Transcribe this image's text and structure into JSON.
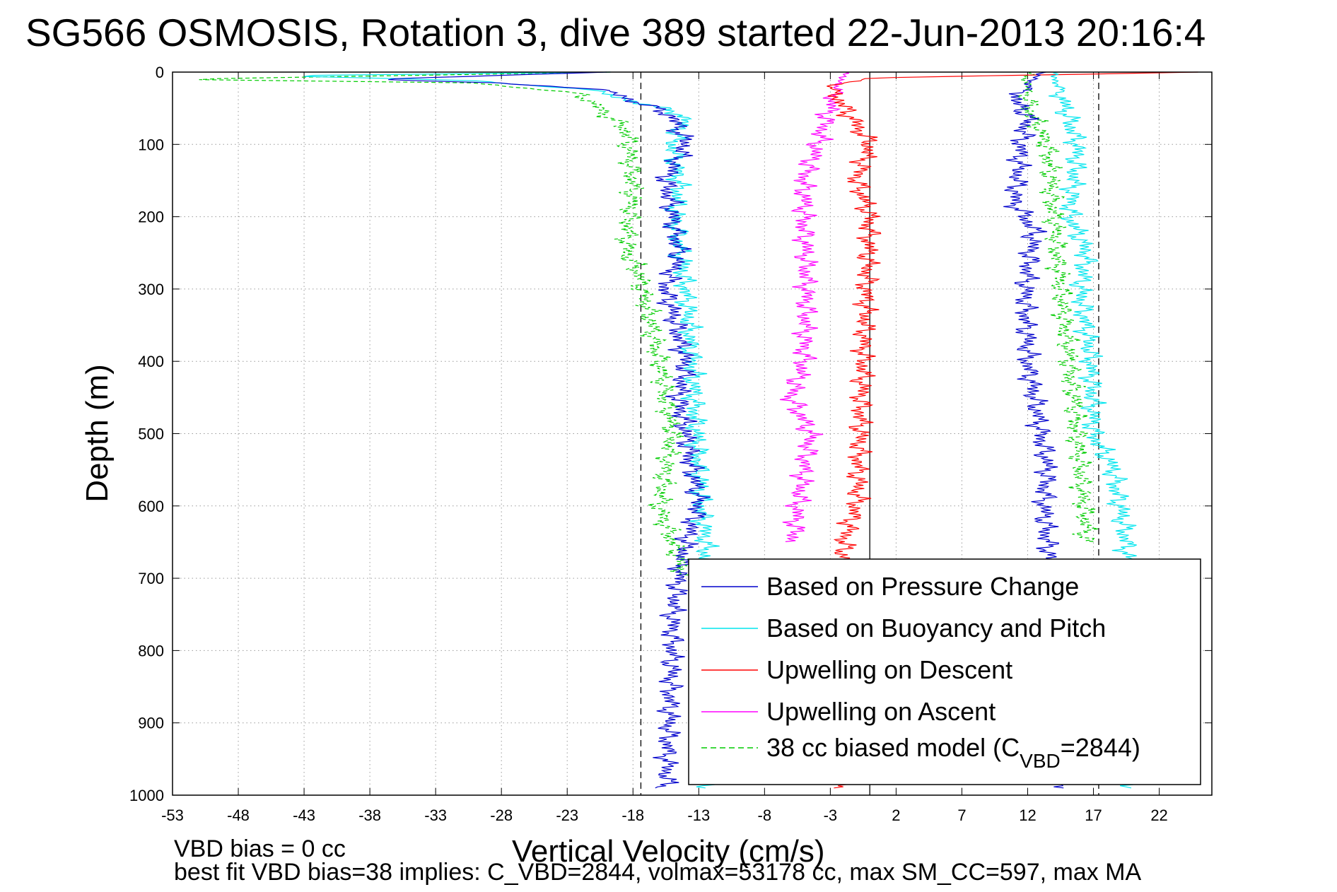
{
  "figure": {
    "title": "SG566 OSMOSIS, Rotation 3, dive 389 started 22-Jun-2013 20:16:4",
    "note_line1": "VBD bias = 0 cc",
    "note_line2": "best fit VBD bias=38 implies: C_VBD=2844, volmax=53178 cc, max SM_CC=597, max MA"
  },
  "chart_data": {
    "type": "line",
    "title": "SG566 OSMOSIS, Rotation 3, dive 389 started 22-Jun-2013 20:16:4",
    "xlabel": "Vertical Velocity (cm/s)",
    "ylabel": "Depth (m)",
    "xlim": [
      -53,
      26
    ],
    "ylim": [
      1000,
      0
    ],
    "y_reversed": true,
    "xticks": [
      -53,
      -48,
      -43,
      -38,
      -33,
      -28,
      -23,
      -18,
      -13,
      -8,
      -3,
      2,
      7,
      12,
      17,
      22
    ],
    "yticks": [
      0,
      100,
      200,
      300,
      400,
      500,
      600,
      700,
      800,
      900,
      1000
    ],
    "grid": true,
    "legend_position": "bottom-right",
    "reference_lines": [
      {
        "x": -17.4,
        "style": "dashed",
        "color": "#000000"
      },
      {
        "x": 0,
        "style": "solid",
        "color": "#000000"
      },
      {
        "x": 17.4,
        "style": "dashed",
        "color": "#000000"
      }
    ],
    "series": [
      {
        "name": "Based on Pressure Change",
        "color": "#0000cc",
        "style": "solid",
        "branches": [
          {
            "x": [
              -20,
              -38,
              -28,
              -20,
              -15,
              -14,
              -15.5,
              -15,
              -14.5,
              -15.5,
              -14,
              -14.5,
              -13.5,
              -13,
              -14,
              -14.5,
              -15,
              -15,
              -15.5
            ],
            "y": [
              0,
              10,
              15,
              25,
              60,
              100,
              150,
              200,
              250,
              300,
              400,
              450,
              550,
              600,
              650,
              700,
              750,
              800,
              990
            ]
          },
          {
            "x": [
              13,
              11,
              12,
              11.5,
              11,
              12.5,
              11.8,
              12,
              13,
              13.5,
              13.2,
              13.5,
              14,
              15
            ],
            "y": [
              0,
              40,
              60,
              100,
              180,
              220,
              300,
              400,
              500,
              550,
              600,
              650,
              700,
              990
            ]
          }
        ]
      },
      {
        "name": "Based on Buoyancy and Pitch",
        "color": "#00e5ee",
        "style": "solid",
        "branches": [
          {
            "x": [
              -20,
              -45,
              -30,
              -21,
              -14,
              -15,
              -14.5,
              -14.8,
              -14,
              -13.5,
              -13.2,
              -13,
              -12.8,
              -12.5,
              -12.5,
              -12.3
            ],
            "y": [
              0,
              5,
              12,
              25,
              60,
              100,
              150,
              200,
              300,
              400,
              500,
              550,
              600,
              650,
              700,
              990
            ]
          },
          {
            "x": [
              14,
              14.5,
              15,
              15.8,
              15.5,
              15.2,
              16.5,
              16,
              16.8,
              17,
              18.5,
              19,
              19.5,
              20
            ],
            "y": [
              0,
              30,
              60,
              100,
              150,
              200,
              250,
              300,
              400,
              500,
              550,
              600,
              650,
              990
            ]
          }
        ]
      },
      {
        "name": "Upwelling on Descent",
        "color": "#ff0000",
        "style": "solid",
        "branches": [
          {
            "x": [
              25,
              0,
              -3,
              0,
              -1,
              0,
              -0.5,
              -1,
              -2,
              -2
            ],
            "y": [
              0,
              8,
              20,
              100,
              150,
              200,
              400,
              600,
              650,
              990
            ]
          }
        ]
      },
      {
        "name": "Upwelling on Ascent",
        "color": "#ff00ff",
        "style": "solid",
        "branches": [
          {
            "x": [
              -2,
              -3,
              -4,
              -5,
              -5,
              -4.8,
              -5,
              -6,
              -4.5,
              -5.5,
              -5.8
            ],
            "y": [
              0,
              50,
              100,
              150,
              200,
              300,
              400,
              450,
              500,
              600,
              650
            ]
          }
        ]
      },
      {
        "name": "38 cc biased model (C_VBD=2844)",
        "color": "#00cc00",
        "style": "dashed",
        "branches": [
          {
            "x": [
              -20,
              -53,
              -30,
              -22,
              -18.5,
              -18,
              -18.5,
              -17.5,
              -16,
              -15,
              -16,
              -14
            ],
            "y": [
              0,
              10,
              15,
              30,
              80,
              150,
              250,
              280,
              400,
              500,
              600,
              700
            ]
          },
          {
            "x": [
              12,
              12,
              13.5,
              14,
              14.5,
              15.5,
              16,
              16.5
            ],
            "y": [
              0,
              50,
              100,
              200,
              300,
              450,
              550,
              650
            ]
          }
        ]
      }
    ]
  },
  "legend": {
    "items": [
      {
        "text": "Based on Pressure Change",
        "color": "#0000cc",
        "dash": "none"
      },
      {
        "text": "Based on Buoyancy and Pitch",
        "color": "#00e5ee",
        "dash": "none"
      },
      {
        "text": "Upwelling on Descent",
        "color": "#ff0000",
        "dash": "none"
      },
      {
        "text": "Upwelling on Ascent",
        "color": "#ff00ff",
        "dash": "none"
      },
      {
        "text": "38 cc biased model (C",
        "sub": "VBD",
        "tail": "=2844)",
        "color": "#00cc00",
        "dash": "8,5"
      }
    ]
  }
}
